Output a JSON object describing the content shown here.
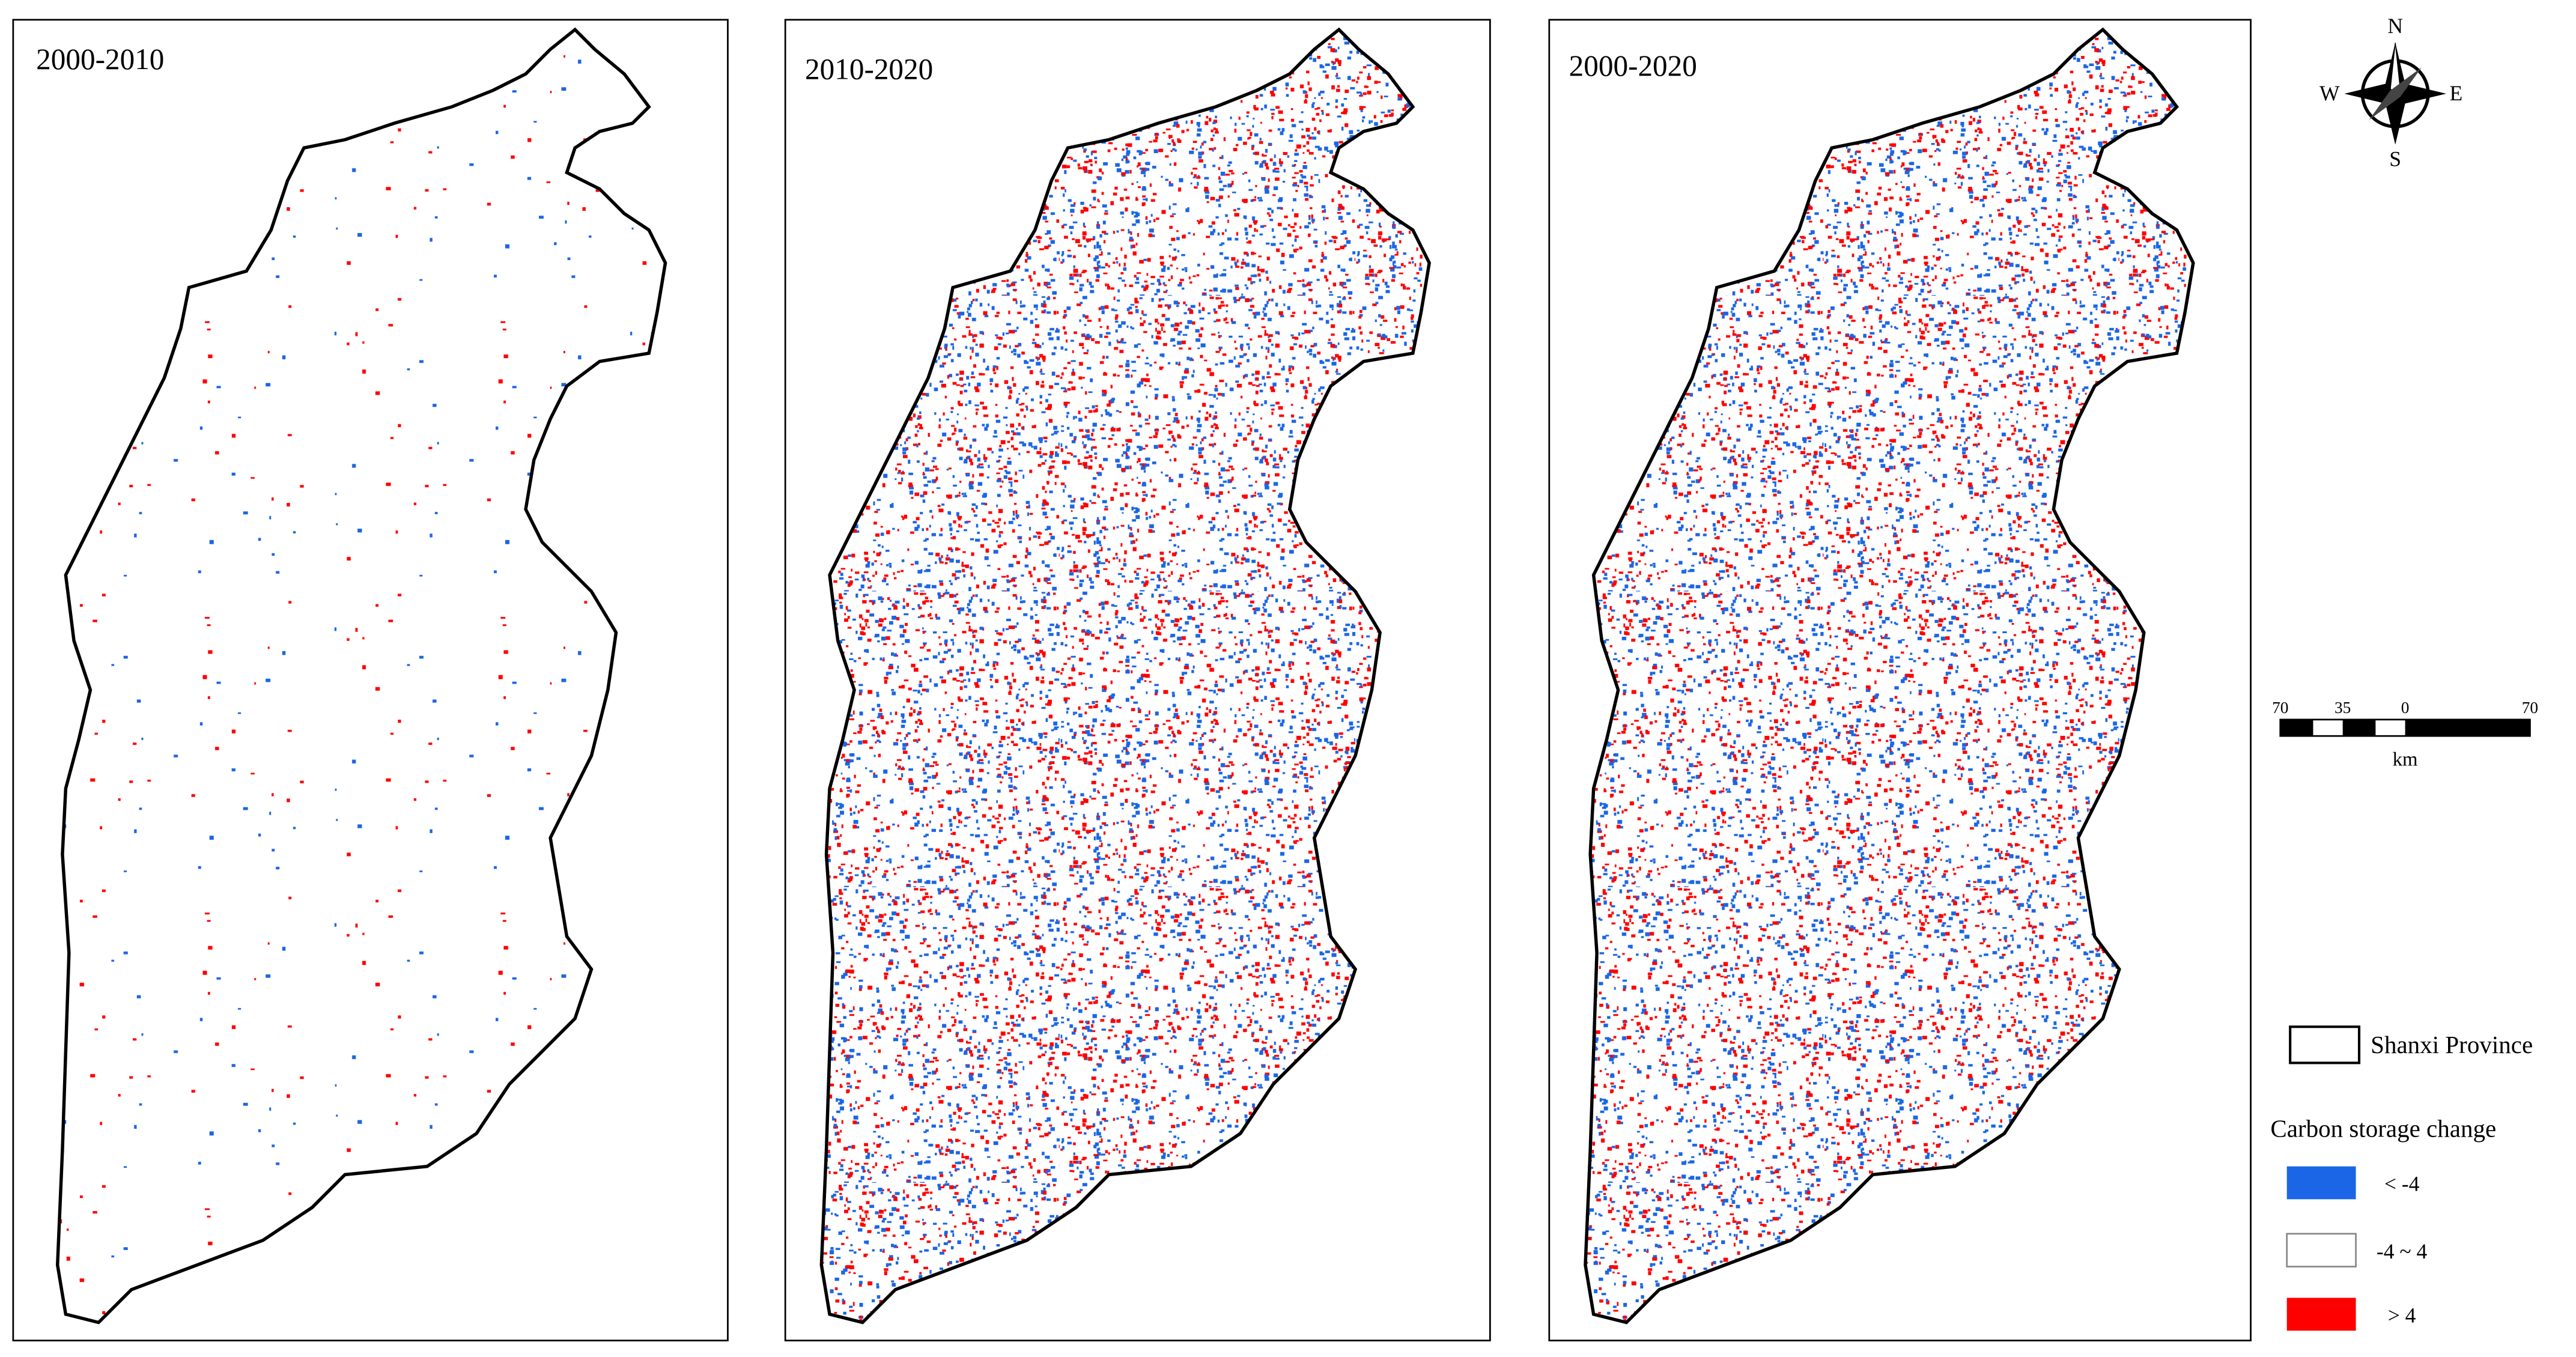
{
  "panels": [
    {
      "title": "2000-2010"
    },
    {
      "title": "2010-2020"
    },
    {
      "title": "2000-2020"
    }
  ],
  "compass": {
    "north": "N",
    "south": "S",
    "west": "W",
    "east": "E"
  },
  "scale_bar": {
    "labels": [
      "70",
      "35",
      "0",
      "70"
    ],
    "unit": "km"
  },
  "legend": {
    "boundary": "Shanxi Province",
    "title": "Carbon storage change",
    "classes": [
      {
        "label": "< -4",
        "color": "#1a66e6"
      },
      {
        "label": "-4 ~ 4",
        "color": "#ffffff"
      },
      {
        "label": "> 4",
        "color": "#ff0000"
      }
    ]
  }
}
